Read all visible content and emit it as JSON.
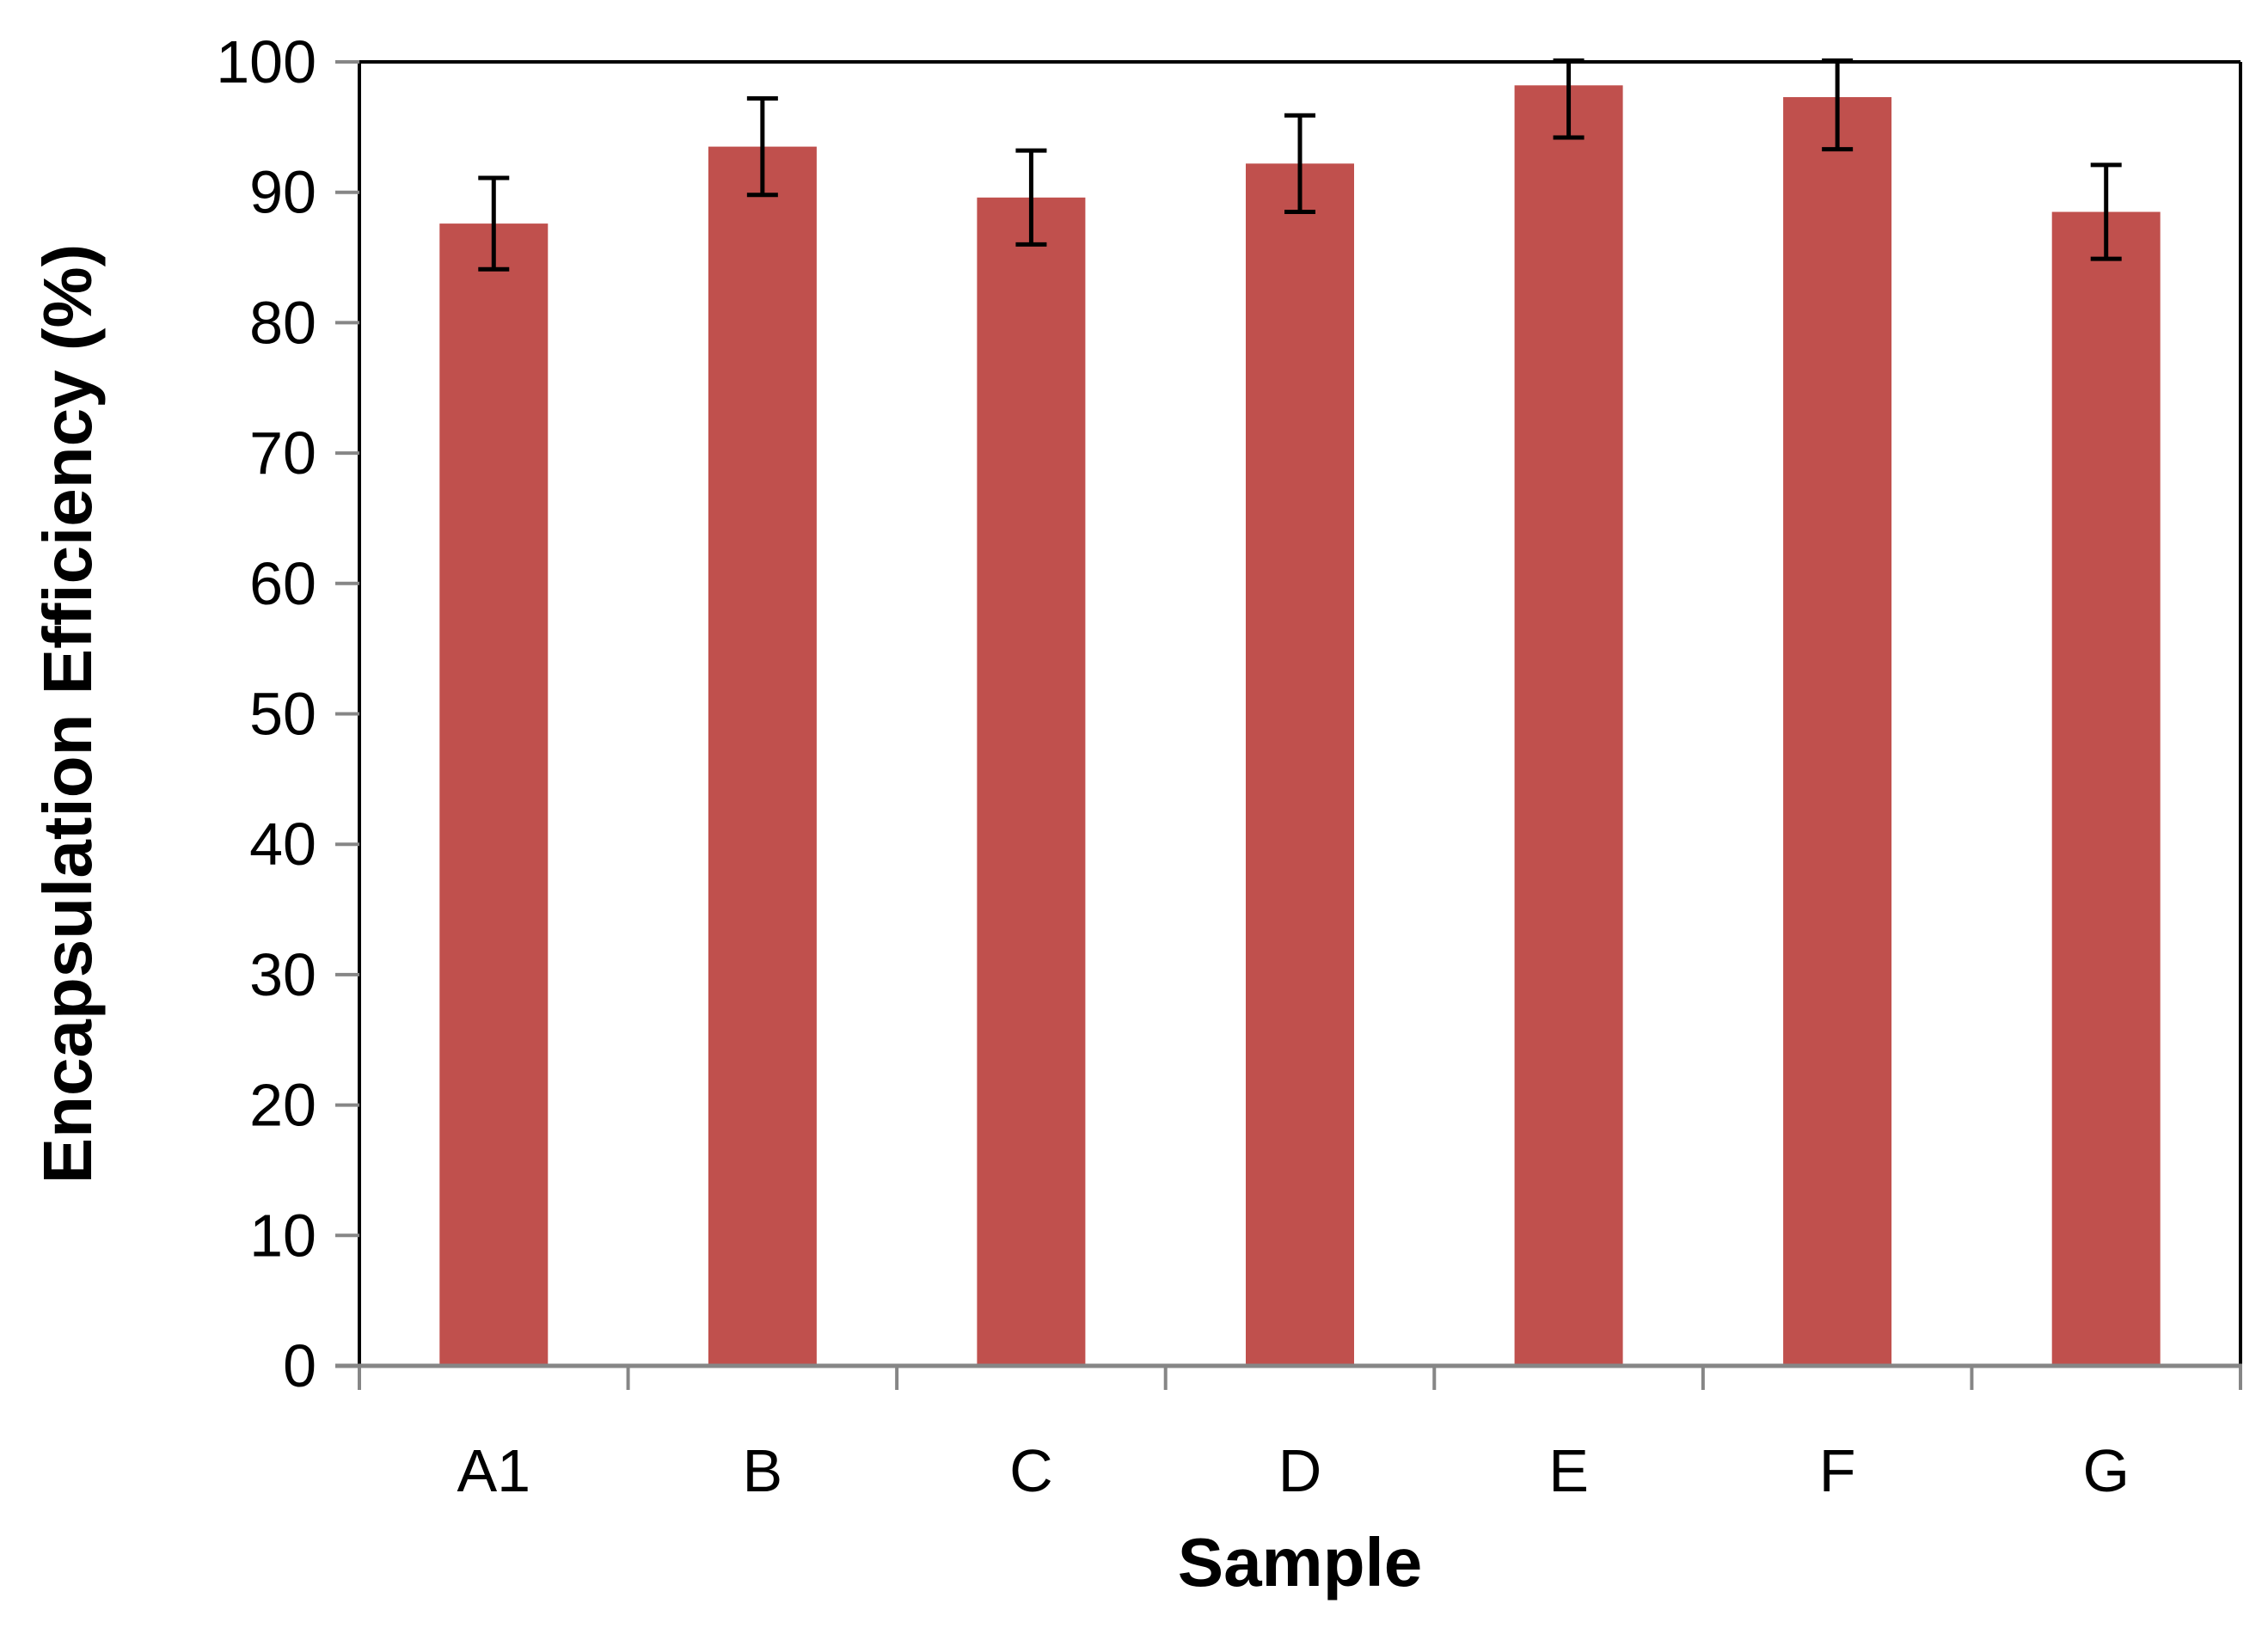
{
  "chart_data": {
    "type": "bar",
    "title": "",
    "xlabel": "Sample",
    "ylabel": "Encapsulation Efficiency (%)",
    "categories": [
      "A1",
      "B",
      "C",
      "D",
      "E",
      "F",
      "G"
    ],
    "series": [
      {
        "values": [
          87.6,
          93.5,
          89.6,
          92.2,
          98.2,
          97.3,
          88.5
        ],
        "error": [
          3.5,
          3.7,
          3.6,
          3.7,
          4.0,
          4.0,
          3.6
        ]
      }
    ],
    "ylim": [
      0,
      100
    ],
    "yticks": [
      0,
      10,
      20,
      30,
      40,
      50,
      60,
      70,
      80,
      90,
      100
    ],
    "ytick_labels": [
      "0",
      "10",
      "20",
      "30",
      "40",
      "50",
      "60",
      "70",
      "80",
      "90",
      "100"
    ],
    "grid": false,
    "legend": "none",
    "colors": {
      "bar": "#C0504D",
      "error_bar": "#000000",
      "plot_border": "#000000",
      "x_axis": "#868686"
    }
  }
}
